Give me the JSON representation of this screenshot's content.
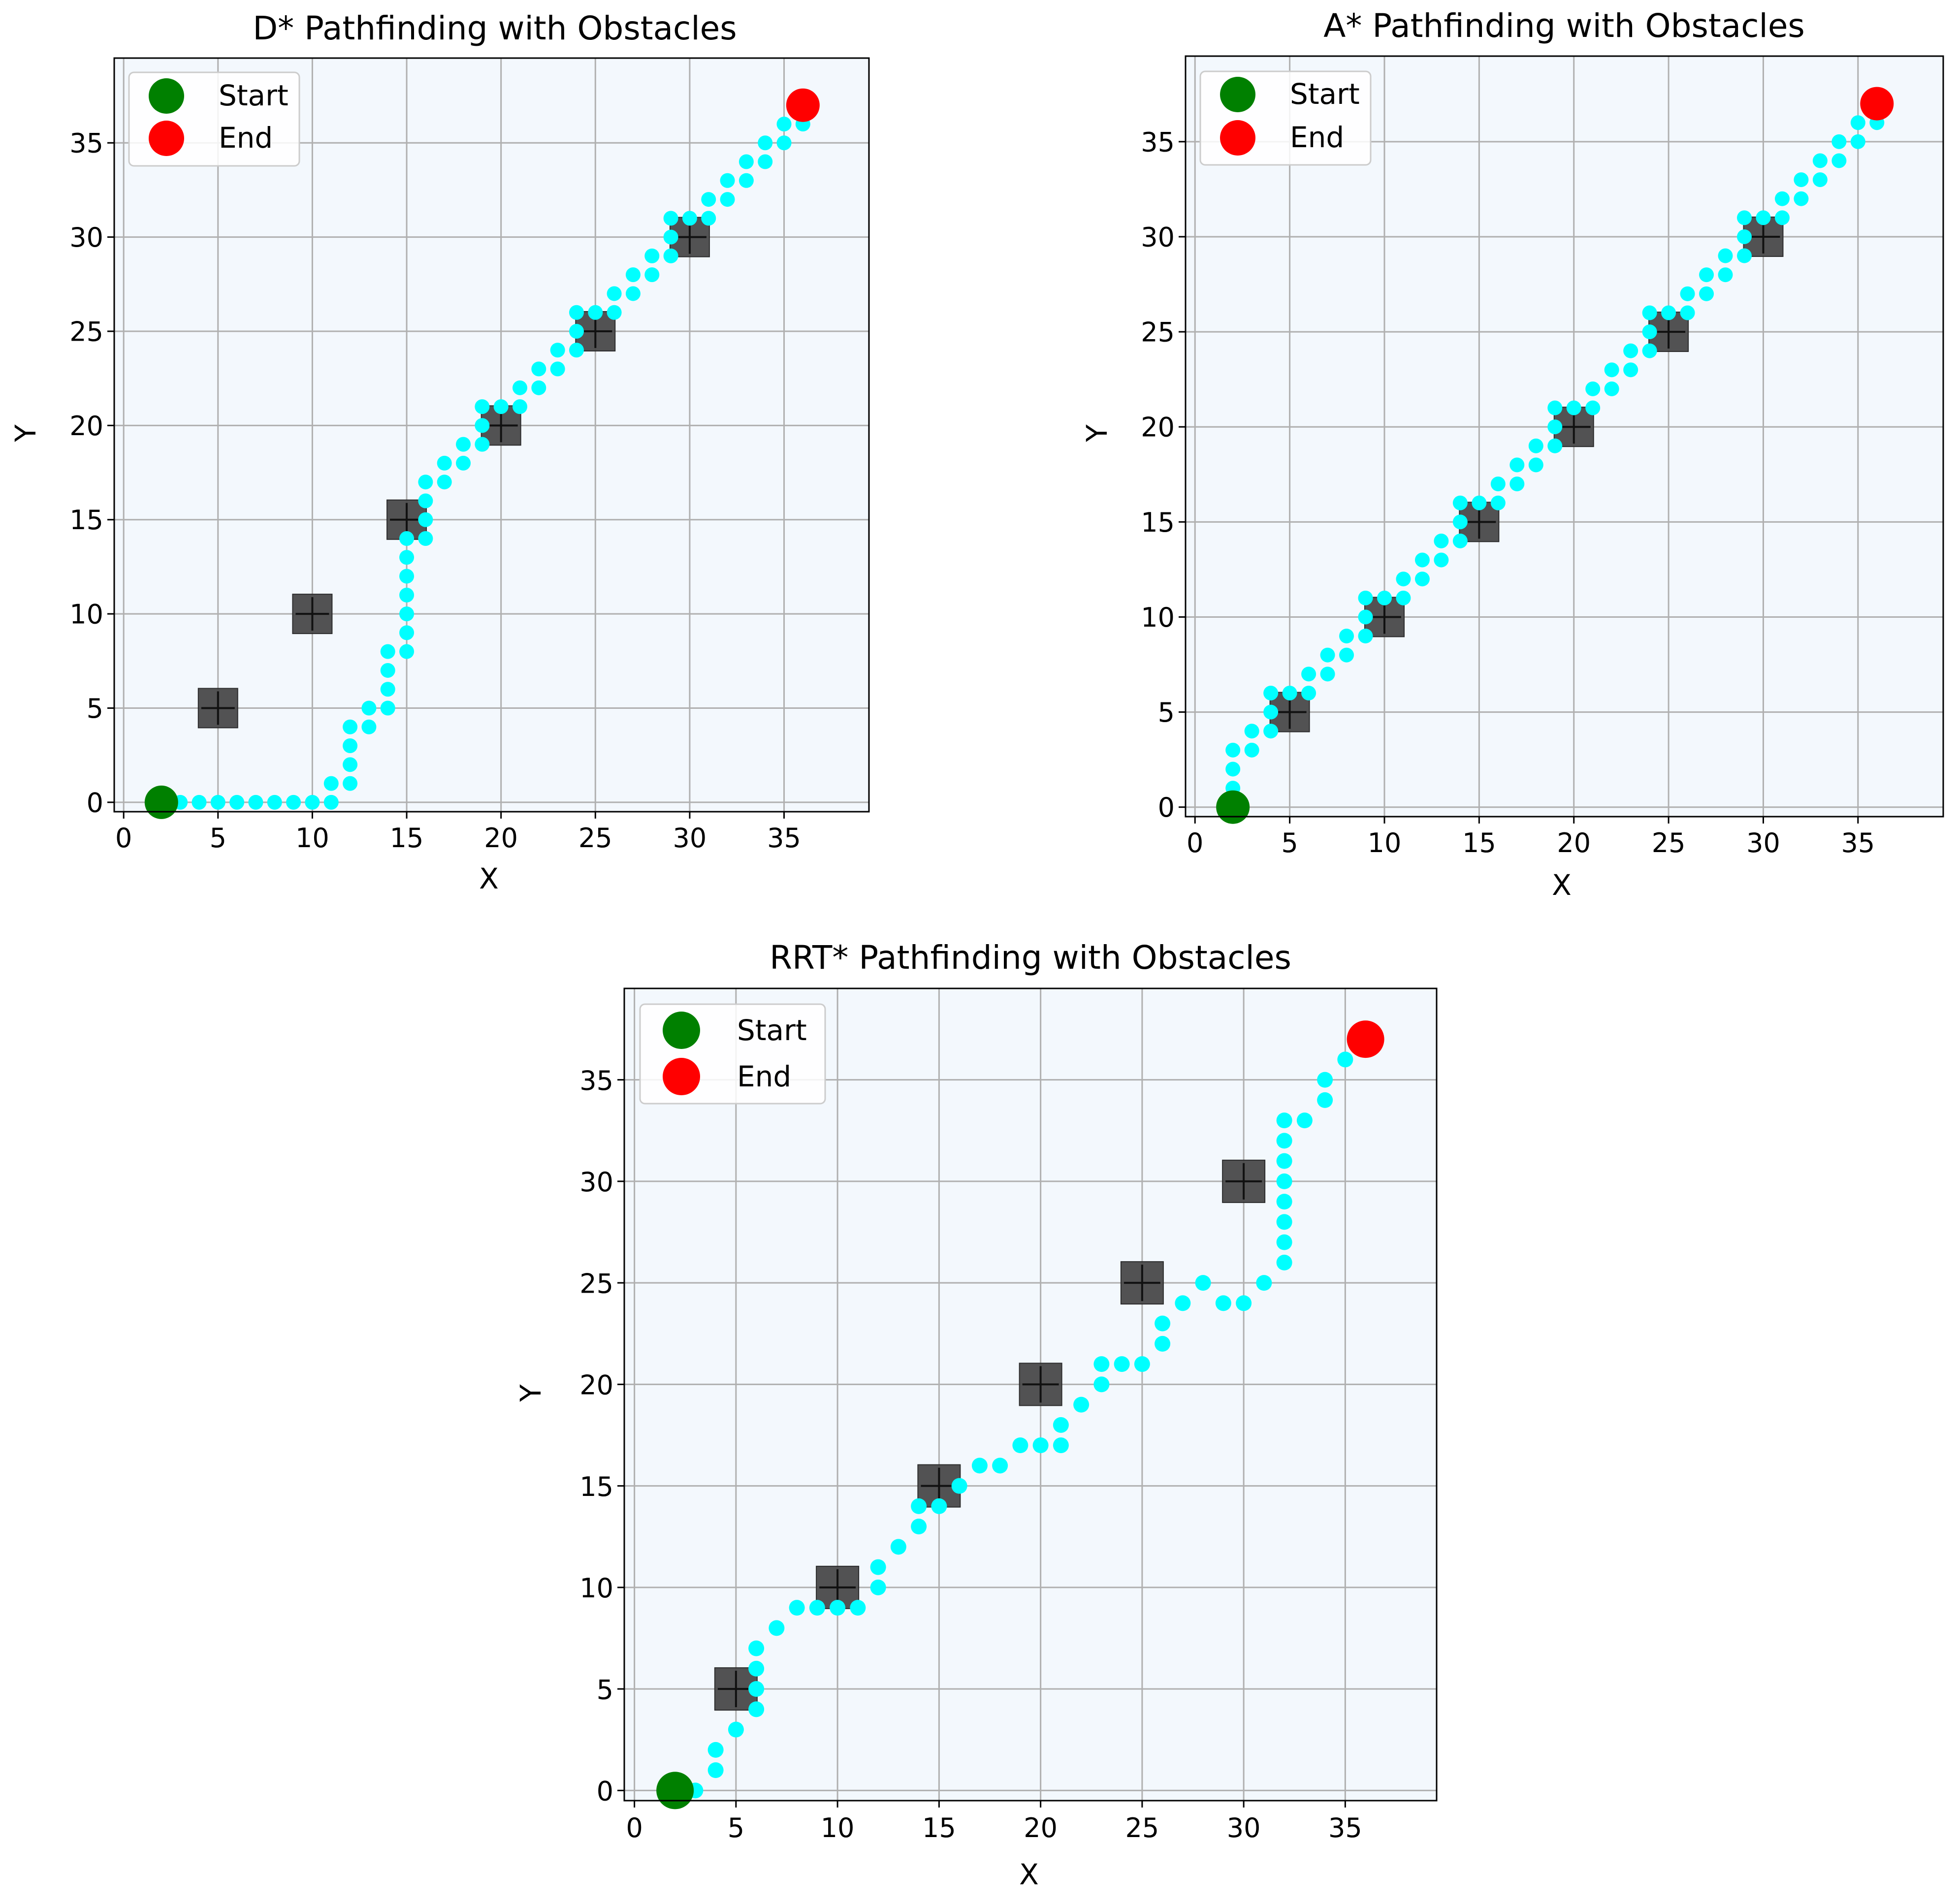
{
  "chart_data": [
    {
      "type": "scatter",
      "title": "D* Pathfinding with Obstacles",
      "xlabel": "X",
      "ylabel": "Y",
      "xlim": [
        -0.5,
        39.5
      ],
      "ylim": [
        -0.5,
        39.5
      ],
      "xticks": [
        0,
        5,
        10,
        15,
        20,
        25,
        30,
        35
      ],
      "yticks": [
        0,
        5,
        10,
        15,
        20,
        25,
        30,
        35
      ],
      "grid": true,
      "legend": {
        "placement": "upper-left",
        "entries": [
          {
            "label": "Start",
            "color": "#008000"
          },
          {
            "label": "End",
            "color": "#ff0000"
          }
        ]
      },
      "start": [
        2,
        0
      ],
      "end": [
        36,
        37
      ],
      "obstacles": [
        [
          5,
          5
        ],
        [
          10,
          10
        ],
        [
          15,
          15
        ],
        [
          20,
          20
        ],
        [
          25,
          25
        ],
        [
          30,
          30
        ]
      ],
      "path": [
        [
          2,
          0
        ],
        [
          3,
          0
        ],
        [
          4,
          0
        ],
        [
          5,
          0
        ],
        [
          6,
          0
        ],
        [
          7,
          0
        ],
        [
          8,
          0
        ],
        [
          9,
          0
        ],
        [
          10,
          0
        ],
        [
          11,
          0
        ],
        [
          11,
          1
        ],
        [
          12,
          1
        ],
        [
          12,
          2
        ],
        [
          12,
          3
        ],
        [
          12,
          4
        ],
        [
          13,
          4
        ],
        [
          13,
          5
        ],
        [
          14,
          5
        ],
        [
          14,
          6
        ],
        [
          14,
          7
        ],
        [
          14,
          8
        ],
        [
          15,
          8
        ],
        [
          15,
          9
        ],
        [
          15,
          10
        ],
        [
          15,
          11
        ],
        [
          15,
          12
        ],
        [
          15,
          13
        ],
        [
          15,
          14
        ],
        [
          16,
          14
        ],
        [
          16,
          15
        ],
        [
          16,
          16
        ],
        [
          16,
          17
        ],
        [
          17,
          17
        ],
        [
          17,
          18
        ],
        [
          18,
          18
        ],
        [
          18,
          19
        ],
        [
          19,
          19
        ],
        [
          19,
          20
        ],
        [
          19,
          21
        ],
        [
          20,
          21
        ],
        [
          21,
          21
        ],
        [
          21,
          22
        ],
        [
          22,
          22
        ],
        [
          22,
          23
        ],
        [
          23,
          23
        ],
        [
          23,
          24
        ],
        [
          24,
          24
        ],
        [
          24,
          25
        ],
        [
          24,
          26
        ],
        [
          25,
          26
        ],
        [
          26,
          26
        ],
        [
          26,
          27
        ],
        [
          27,
          27
        ],
        [
          27,
          28
        ],
        [
          28,
          28
        ],
        [
          28,
          29
        ],
        [
          29,
          29
        ],
        [
          29,
          30
        ],
        [
          29,
          31
        ],
        [
          30,
          31
        ],
        [
          31,
          31
        ],
        [
          31,
          32
        ],
        [
          32,
          32
        ],
        [
          32,
          33
        ],
        [
          33,
          33
        ],
        [
          33,
          34
        ],
        [
          34,
          34
        ],
        [
          34,
          35
        ],
        [
          35,
          35
        ],
        [
          35,
          36
        ],
        [
          36,
          36
        ]
      ]
    },
    {
      "type": "scatter",
      "title": "A* Pathfinding with Obstacles",
      "xlabel": "X",
      "ylabel": "Y",
      "xlim": [
        -0.5,
        39.5
      ],
      "ylim": [
        -0.5,
        39.5
      ],
      "xticks": [
        0,
        5,
        10,
        15,
        20,
        25,
        30,
        35
      ],
      "yticks": [
        0,
        5,
        10,
        15,
        20,
        25,
        30,
        35
      ],
      "grid": true,
      "legend": {
        "placement": "upper-left",
        "entries": [
          {
            "label": "Start",
            "color": "#008000"
          },
          {
            "label": "End",
            "color": "#ff0000"
          }
        ]
      },
      "start": [
        2,
        0
      ],
      "end": [
        36,
        37
      ],
      "obstacles": [
        [
          5,
          5
        ],
        [
          10,
          10
        ],
        [
          15,
          15
        ],
        [
          20,
          20
        ],
        [
          25,
          25
        ],
        [
          30,
          30
        ]
      ],
      "path": [
        [
          2,
          0
        ],
        [
          2,
          1
        ],
        [
          2,
          2
        ],
        [
          2,
          3
        ],
        [
          3,
          3
        ],
        [
          3,
          4
        ],
        [
          4,
          4
        ],
        [
          4,
          5
        ],
        [
          4,
          6
        ],
        [
          5,
          6
        ],
        [
          6,
          6
        ],
        [
          6,
          7
        ],
        [
          7,
          7
        ],
        [
          7,
          8
        ],
        [
          8,
          8
        ],
        [
          8,
          9
        ],
        [
          9,
          9
        ],
        [
          9,
          10
        ],
        [
          9,
          11
        ],
        [
          10,
          11
        ],
        [
          11,
          11
        ],
        [
          11,
          12
        ],
        [
          12,
          12
        ],
        [
          12,
          13
        ],
        [
          13,
          13
        ],
        [
          13,
          14
        ],
        [
          14,
          14
        ],
        [
          14,
          15
        ],
        [
          14,
          16
        ],
        [
          15,
          16
        ],
        [
          16,
          16
        ],
        [
          16,
          17
        ],
        [
          17,
          17
        ],
        [
          17,
          18
        ],
        [
          18,
          18
        ],
        [
          18,
          19
        ],
        [
          19,
          19
        ],
        [
          19,
          20
        ],
        [
          19,
          21
        ],
        [
          20,
          21
        ],
        [
          21,
          21
        ],
        [
          21,
          22
        ],
        [
          22,
          22
        ],
        [
          22,
          23
        ],
        [
          23,
          23
        ],
        [
          23,
          24
        ],
        [
          24,
          24
        ],
        [
          24,
          25
        ],
        [
          24,
          26
        ],
        [
          25,
          26
        ],
        [
          26,
          26
        ],
        [
          26,
          27
        ],
        [
          27,
          27
        ],
        [
          27,
          28
        ],
        [
          28,
          28
        ],
        [
          28,
          29
        ],
        [
          29,
          29
        ],
        [
          29,
          30
        ],
        [
          29,
          31
        ],
        [
          30,
          31
        ],
        [
          31,
          31
        ],
        [
          31,
          32
        ],
        [
          32,
          32
        ],
        [
          32,
          33
        ],
        [
          33,
          33
        ],
        [
          33,
          34
        ],
        [
          34,
          34
        ],
        [
          34,
          35
        ],
        [
          35,
          35
        ],
        [
          35,
          36
        ],
        [
          36,
          36
        ]
      ]
    },
    {
      "type": "scatter",
      "title": "RRT* Pathfinding with Obstacles",
      "xlabel": "X",
      "ylabel": "Y",
      "xlim": [
        -0.5,
        39.5
      ],
      "ylim": [
        -0.5,
        39.5
      ],
      "xticks": [
        0,
        5,
        10,
        15,
        20,
        25,
        30,
        35
      ],
      "yticks": [
        0,
        5,
        10,
        15,
        20,
        25,
        30,
        35
      ],
      "grid": true,
      "legend": {
        "placement": "upper-left",
        "entries": [
          {
            "label": "Start",
            "color": "#008000"
          },
          {
            "label": "End",
            "color": "#ff0000"
          }
        ]
      },
      "start": [
        2,
        0
      ],
      "end": [
        36,
        37
      ],
      "obstacles": [
        [
          5,
          5
        ],
        [
          10,
          10
        ],
        [
          15,
          15
        ],
        [
          20,
          20
        ],
        [
          25,
          25
        ],
        [
          30,
          30
        ]
      ],
      "path": [
        [
          2,
          0
        ],
        [
          3,
          0
        ],
        [
          4,
          1
        ],
        [
          4,
          2
        ],
        [
          5,
          3
        ],
        [
          6,
          4
        ],
        [
          6,
          5
        ],
        [
          6,
          6
        ],
        [
          6,
          7
        ],
        [
          7,
          8
        ],
        [
          8,
          9
        ],
        [
          9,
          9
        ],
        [
          10,
          9
        ],
        [
          11,
          9
        ],
        [
          12,
          10
        ],
        [
          12,
          11
        ],
        [
          13,
          12
        ],
        [
          14,
          13
        ],
        [
          14,
          14
        ],
        [
          15,
          14
        ],
        [
          16,
          15
        ],
        [
          17,
          16
        ],
        [
          18,
          16
        ],
        [
          19,
          17
        ],
        [
          20,
          17
        ],
        [
          21,
          17
        ],
        [
          21,
          18
        ],
        [
          22,
          19
        ],
        [
          23,
          20
        ],
        [
          23,
          21
        ],
        [
          24,
          21
        ],
        [
          25,
          21
        ],
        [
          26,
          22
        ],
        [
          26,
          23
        ],
        [
          27,
          24
        ],
        [
          28,
          25
        ],
        [
          29,
          24
        ],
        [
          30,
          24
        ],
        [
          31,
          25
        ],
        [
          32,
          26
        ],
        [
          32,
          27
        ],
        [
          32,
          28
        ],
        [
          32,
          29
        ],
        [
          32,
          30
        ],
        [
          32,
          31
        ],
        [
          32,
          32
        ],
        [
          32,
          33
        ],
        [
          33,
          33
        ],
        [
          34,
          34
        ],
        [
          34,
          35
        ],
        [
          35,
          36
        ],
        [
          36,
          37
        ]
      ]
    }
  ],
  "colors": {
    "path": "#00ffff",
    "start": "#008000",
    "end": "#ff0000",
    "obstacle": "#4a4a4a",
    "plot_background": "#f3f8fd",
    "grid": "#b0b0b0"
  }
}
